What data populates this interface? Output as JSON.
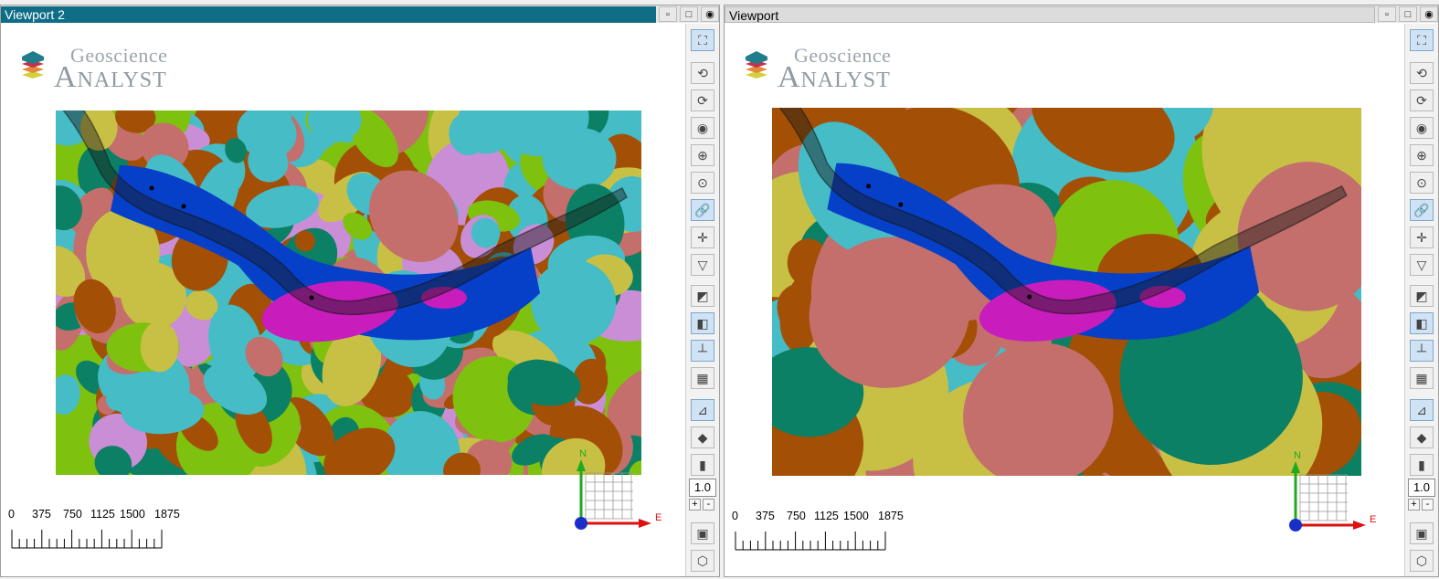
{
  "viewports": [
    {
      "title": "Viewport 2",
      "active": true,
      "logo": {
        "line1": "Geoscience",
        "line2": "Analyst"
      },
      "scale_labels": [
        "0",
        "375",
        "750",
        "1125",
        "1500",
        "1875"
      ],
      "axis": {
        "north": "N",
        "east": "E"
      },
      "zoom": "1.0",
      "palette": "fine"
    },
    {
      "title": "Viewport",
      "active": false,
      "logo": {
        "line1": "Geoscience",
        "line2": "Analyst"
      },
      "scale_labels": [
        "0",
        "375",
        "750",
        "1125",
        "1500",
        "1875"
      ],
      "axis": {
        "north": "N",
        "east": "E"
      },
      "zoom": "1.0",
      "palette": "smooth"
    }
  ],
  "titlebar_buttons": [
    "restore-icon",
    "maximize-icon",
    "visibility-icon"
  ],
  "toolbar": [
    {
      "name": "zoom-extents-icon",
      "glyph": "⛶",
      "on": true
    },
    {
      "name": "view-rotate-left-icon",
      "glyph": "⟲",
      "on": false
    },
    {
      "name": "view-rotate-right-icon",
      "glyph": "⟳",
      "on": false
    },
    {
      "name": "view-center-icon",
      "glyph": "◉",
      "on": false
    },
    {
      "name": "view-top-icon",
      "glyph": "⊕",
      "on": false
    },
    {
      "name": "view-bottom-icon",
      "glyph": "⊙",
      "on": false
    },
    {
      "name": "link-views-icon",
      "glyph": "🔗",
      "on": true
    },
    {
      "name": "axes-marker-icon",
      "glyph": "✛",
      "on": false
    },
    {
      "name": "clipping-icon",
      "glyph": "▽",
      "on": false
    },
    {
      "name": "box-view-icon",
      "glyph": "◩",
      "on": false
    },
    {
      "name": "bounding-box-icon",
      "glyph": "◧",
      "on": true
    },
    {
      "name": "scale-bar-icon",
      "glyph": "┴",
      "on": true
    },
    {
      "name": "grid-icon",
      "glyph": "▦",
      "on": false
    },
    {
      "name": "axes-grid-icon",
      "glyph": "⊿",
      "on": true
    },
    {
      "name": "paint-icon",
      "glyph": "◆",
      "on": false
    },
    {
      "name": "colorbar-icon",
      "glyph": "▮",
      "on": false
    },
    {
      "name": "screenshot-icon",
      "glyph": "▣",
      "on": false
    },
    {
      "name": "3d-cube-icon",
      "glyph": "⬡",
      "on": false
    }
  ],
  "colors": {
    "active_title": "#0f6e86",
    "map_palette": [
      "#a34f05",
      "#c46f6b",
      "#45bcc6",
      "#7ec10e",
      "#0b8064",
      "#c8c045",
      "#c98ed6",
      "#0640c8",
      "#c81cbc",
      "#1aa36a"
    ]
  }
}
